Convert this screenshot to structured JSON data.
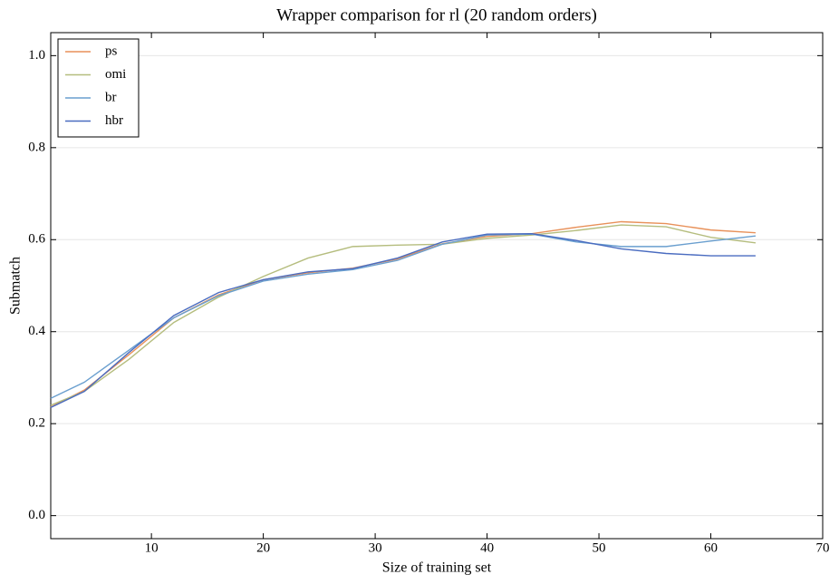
{
  "chart_data": {
    "type": "line",
    "title": "Wrapper comparison for rl (20 random orders)",
    "x_label": "Size of training set",
    "y_label": "Submatch",
    "x": [
      1,
      4,
      8,
      12,
      16,
      20,
      24,
      28,
      32,
      36,
      40,
      44,
      48,
      52,
      56,
      60,
      64
    ],
    "series": [
      {
        "name": "ps",
        "color": "#e8915a",
        "values": [
          0.236,
          0.273,
          0.35,
          0.43,
          0.48,
          0.513,
          0.528,
          0.538,
          0.558,
          0.591,
          0.607,
          0.613,
          0.627,
          0.639,
          0.635,
          0.621,
          0.615
        ]
      },
      {
        "name": "omi",
        "color": "#b5bd7e",
        "values": [
          0.24,
          0.27,
          0.34,
          0.42,
          0.475,
          0.52,
          0.56,
          0.585,
          0.588,
          0.59,
          0.603,
          0.61,
          0.62,
          0.632,
          0.628,
          0.605,
          0.593
        ]
      },
      {
        "name": "br",
        "color": "#6a9fcf",
        "values": [
          0.255,
          0.29,
          0.36,
          0.43,
          0.478,
          0.51,
          0.525,
          0.535,
          0.555,
          0.59,
          0.61,
          0.612,
          0.595,
          0.585,
          0.585,
          0.597,
          0.608
        ]
      },
      {
        "name": "hbr",
        "color": "#4a6cc0",
        "values": [
          0.235,
          0.27,
          0.355,
          0.435,
          0.485,
          0.513,
          0.53,
          0.537,
          0.56,
          0.595,
          0.612,
          0.613,
          0.598,
          0.58,
          0.57,
          0.565,
          0.565
        ]
      }
    ],
    "xlim": [
      1,
      70
    ],
    "ylim": [
      -0.05,
      1.05
    ],
    "xticks": [
      10,
      20,
      30,
      40,
      50,
      60,
      70
    ],
    "yticks": [
      {
        "value": 0,
        "label": "0.0"
      },
      0.2,
      0.4,
      0.6,
      0.8,
      {
        "value": 1,
        "label": "1.0"
      }
    ],
    "grid": "y",
    "legend": "upper left"
  }
}
